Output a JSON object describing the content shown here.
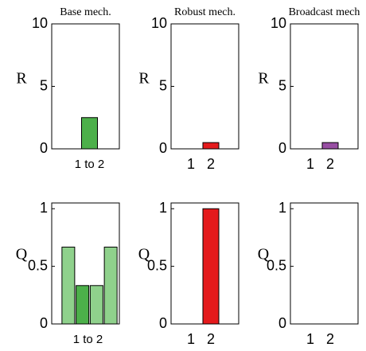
{
  "chart_data": [
    {
      "type": "bar",
      "title": "Base mech.",
      "ylabel": "R",
      "categories": [
        "1 to 2"
      ],
      "values": [
        2.5
      ],
      "colors": [
        "#4cb04a"
      ],
      "ylim": [
        0,
        10
      ],
      "yticks": [
        0,
        5,
        10
      ]
    },
    {
      "type": "bar",
      "title": "Robust mech.",
      "ylabel": "R",
      "categories": [
        "1",
        "2"
      ],
      "values": [
        0,
        0.5
      ],
      "colors": [
        "#e41a1c",
        "#e41a1c"
      ],
      "ylim": [
        0,
        10
      ],
      "yticks": [
        0,
        5,
        10
      ]
    },
    {
      "type": "bar",
      "title": "Broadcast mech",
      "ylabel": "R",
      "categories": [
        "1",
        "2"
      ],
      "values": [
        0,
        0.5
      ],
      "colors": [
        "#984ea3",
        "#984ea3"
      ],
      "ylim": [
        0,
        10
      ],
      "yticks": [
        0,
        5,
        10
      ]
    },
    {
      "type": "bar",
      "ylabel": "Q",
      "xlabel": "1 to 2",
      "categories": [
        null,
        null,
        null,
        null
      ],
      "values": [
        0.667,
        0.333,
        0.333,
        0.667
      ],
      "colors": [
        "#8fd18c",
        "#4cb04a",
        "#8fd18c",
        "#8fd18c"
      ],
      "ylim": [
        0,
        1.05
      ],
      "yticks": [
        0,
        0.5,
        1
      ]
    },
    {
      "type": "bar",
      "ylabel": "Q",
      "categories": [
        "1",
        "2"
      ],
      "values": [
        0,
        1
      ],
      "colors": [
        "#e41a1c",
        "#e41a1c"
      ],
      "ylim": [
        0,
        1.05
      ],
      "yticks": [
        0,
        0.5,
        1
      ]
    },
    {
      "type": "bar",
      "ylabel": "Q",
      "categories": [
        "1",
        "2"
      ],
      "values": [
        0,
        0
      ],
      "colors": [
        "#984ea3",
        "#984ea3"
      ],
      "ylim": [
        0,
        1.05
      ],
      "yticks": [
        0,
        0.5,
        1
      ]
    }
  ]
}
